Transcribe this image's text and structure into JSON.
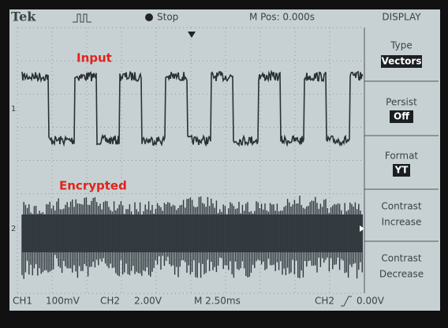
{
  "header": {
    "brand": "Tek",
    "status": "Stop",
    "position": "M Pos: 0.000s",
    "menu_title": "DISPLAY"
  },
  "menu": [
    {
      "title": "Type",
      "value": "Vectors"
    },
    {
      "title": "Persist",
      "value": "Off"
    },
    {
      "title": "Format",
      "value": "YT"
    }
  ],
  "actions": [
    {
      "title": "Contrast",
      "action": "Increase"
    },
    {
      "title": "Contrast",
      "action": "Decrease"
    }
  ],
  "traces": [
    {
      "label": "Input",
      "marker": "1"
    },
    {
      "label": "Encrypted",
      "marker": "2"
    }
  ],
  "footer": {
    "ch1": "CH1",
    "ch1_scale": "100mV",
    "ch2": "CH2",
    "ch2_scale": "2.00V",
    "timebase": "M 2.50ms",
    "trigger_source": "CH2",
    "trigger_level": "0.00V"
  }
}
